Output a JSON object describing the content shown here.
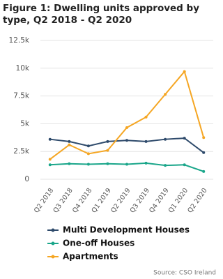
{
  "chart_data": {
    "type": "line",
    "title": "Figure 1: Dwelling units approved by type, Q2 2018 - Q2 2020",
    "categories": [
      "Q2 2018",
      "Q3 2018",
      "Q4 2018",
      "Q1 2019",
      "Q2 2019",
      "Q3 2019",
      "Q4 2019",
      "Q1 2020",
      "Q2 2020"
    ],
    "series": [
      {
        "name": "Multi Development Houses",
        "color": "#2e4a6b",
        "values": [
          3600,
          3400,
          3000,
          3400,
          3500,
          3400,
          3600,
          3700,
          2400
        ]
      },
      {
        "name": "One-off Houses",
        "color": "#1aa68a",
        "values": [
          1300,
          1400,
          1350,
          1400,
          1350,
          1450,
          1250,
          1300,
          700
        ]
      },
      {
        "name": "Apartments",
        "color": "#f5a623",
        "values": [
          1800,
          3100,
          2300,
          2600,
          4650,
          5600,
          7650,
          9700,
          3750
        ]
      }
    ],
    "ylim": [
      0,
      12500
    ],
    "yticks": [
      0,
      {
        "value": 2500,
        "label": "2.5k"
      },
      {
        "value": 5000,
        "label": "5k"
      },
      {
        "value": 7500,
        "label": "7.5k"
      },
      {
        "value": 10000,
        "label": "10k"
      },
      {
        "value": 12500,
        "label": "12.5k"
      }
    ],
    "grid": true,
    "source": "Source: CSO Ireland"
  }
}
